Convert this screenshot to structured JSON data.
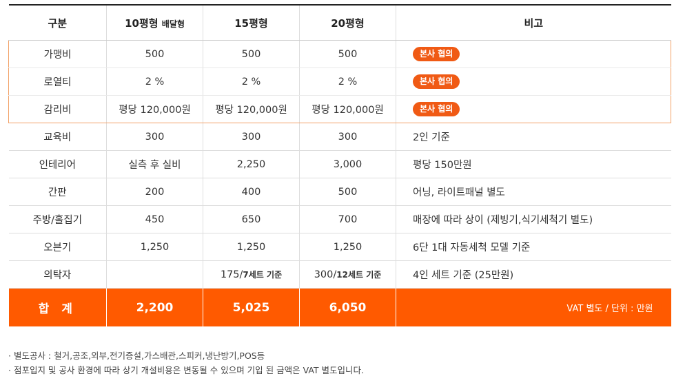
{
  "table": {
    "headers": [
      {
        "label": "구분",
        "sub": ""
      },
      {
        "label": "10평형",
        "sub": "배달형"
      },
      {
        "label": "15평형",
        "sub": ""
      },
      {
        "label": "20평형",
        "sub": ""
      },
      {
        "label": "비고",
        "sub": ""
      }
    ],
    "rows": [
      {
        "category": "가맹비",
        "c10": "500",
        "c15": "500",
        "c20": "500",
        "note": "",
        "badge": "본사 협의"
      },
      {
        "category": "로열티",
        "c10": "2 %",
        "c15": "2 %",
        "c20": "2 %",
        "note": "",
        "badge": "본사 협의"
      },
      {
        "category": "감리비",
        "c10": "평당 120,000원",
        "c15": "평당 120,000원",
        "c20": "평당 120,000원",
        "note": "",
        "badge": "본사 협의"
      },
      {
        "category": "교육비",
        "c10": "300",
        "c15": "300",
        "c20": "300",
        "note": "2인 기준",
        "badge": ""
      },
      {
        "category": "인테리어",
        "c10": "실측 후 실비",
        "c15": "2,250",
        "c20": "3,000",
        "note": "평당 150만원",
        "badge": ""
      },
      {
        "category": "간판",
        "c10": "200",
        "c15": "400",
        "c20": "500",
        "note": "어닝, 라이트패널 별도",
        "badge": ""
      },
      {
        "category": "주방/홀집기",
        "c10": "450",
        "c15": "650",
        "c20": "700",
        "note": "매장에 따라 상이 (제빙기,식기세척기 별도)",
        "badge": ""
      },
      {
        "category": "오븐기",
        "c10": "1,250",
        "c15": "1,250",
        "c20": "1,250",
        "note": "6단 1대 자동세척 모델 기준",
        "badge": ""
      }
    ],
    "furniture_row": {
      "category": "의탁자",
      "c10": "",
      "c15_value": "175/",
      "c15_suffix": "7세트 기준",
      "c20_value": "300/",
      "c20_suffix": "12세트 기준",
      "note": "4인 세트 기준 (25만원)"
    },
    "total": {
      "label": "합 계",
      "c10": "2,200",
      "c15": "5,025",
      "c20": "6,050",
      "note": "VAT 별도 / 단위 : 만원"
    }
  },
  "footnotes": [
    "· 별도공사 : 철거,공조,외부,전기증설,가스배관,스피커,냉난방기,POS등",
    "· 점포입지 및 공사 환경에 따라 상기 개설비용은 변동될 수 있으며 기입 된 금액은 VAT 별도입니다."
  ],
  "colors": {
    "accent": "#ff5a00",
    "badge": "#f05a14",
    "highlight_border": "#f2a065"
  }
}
